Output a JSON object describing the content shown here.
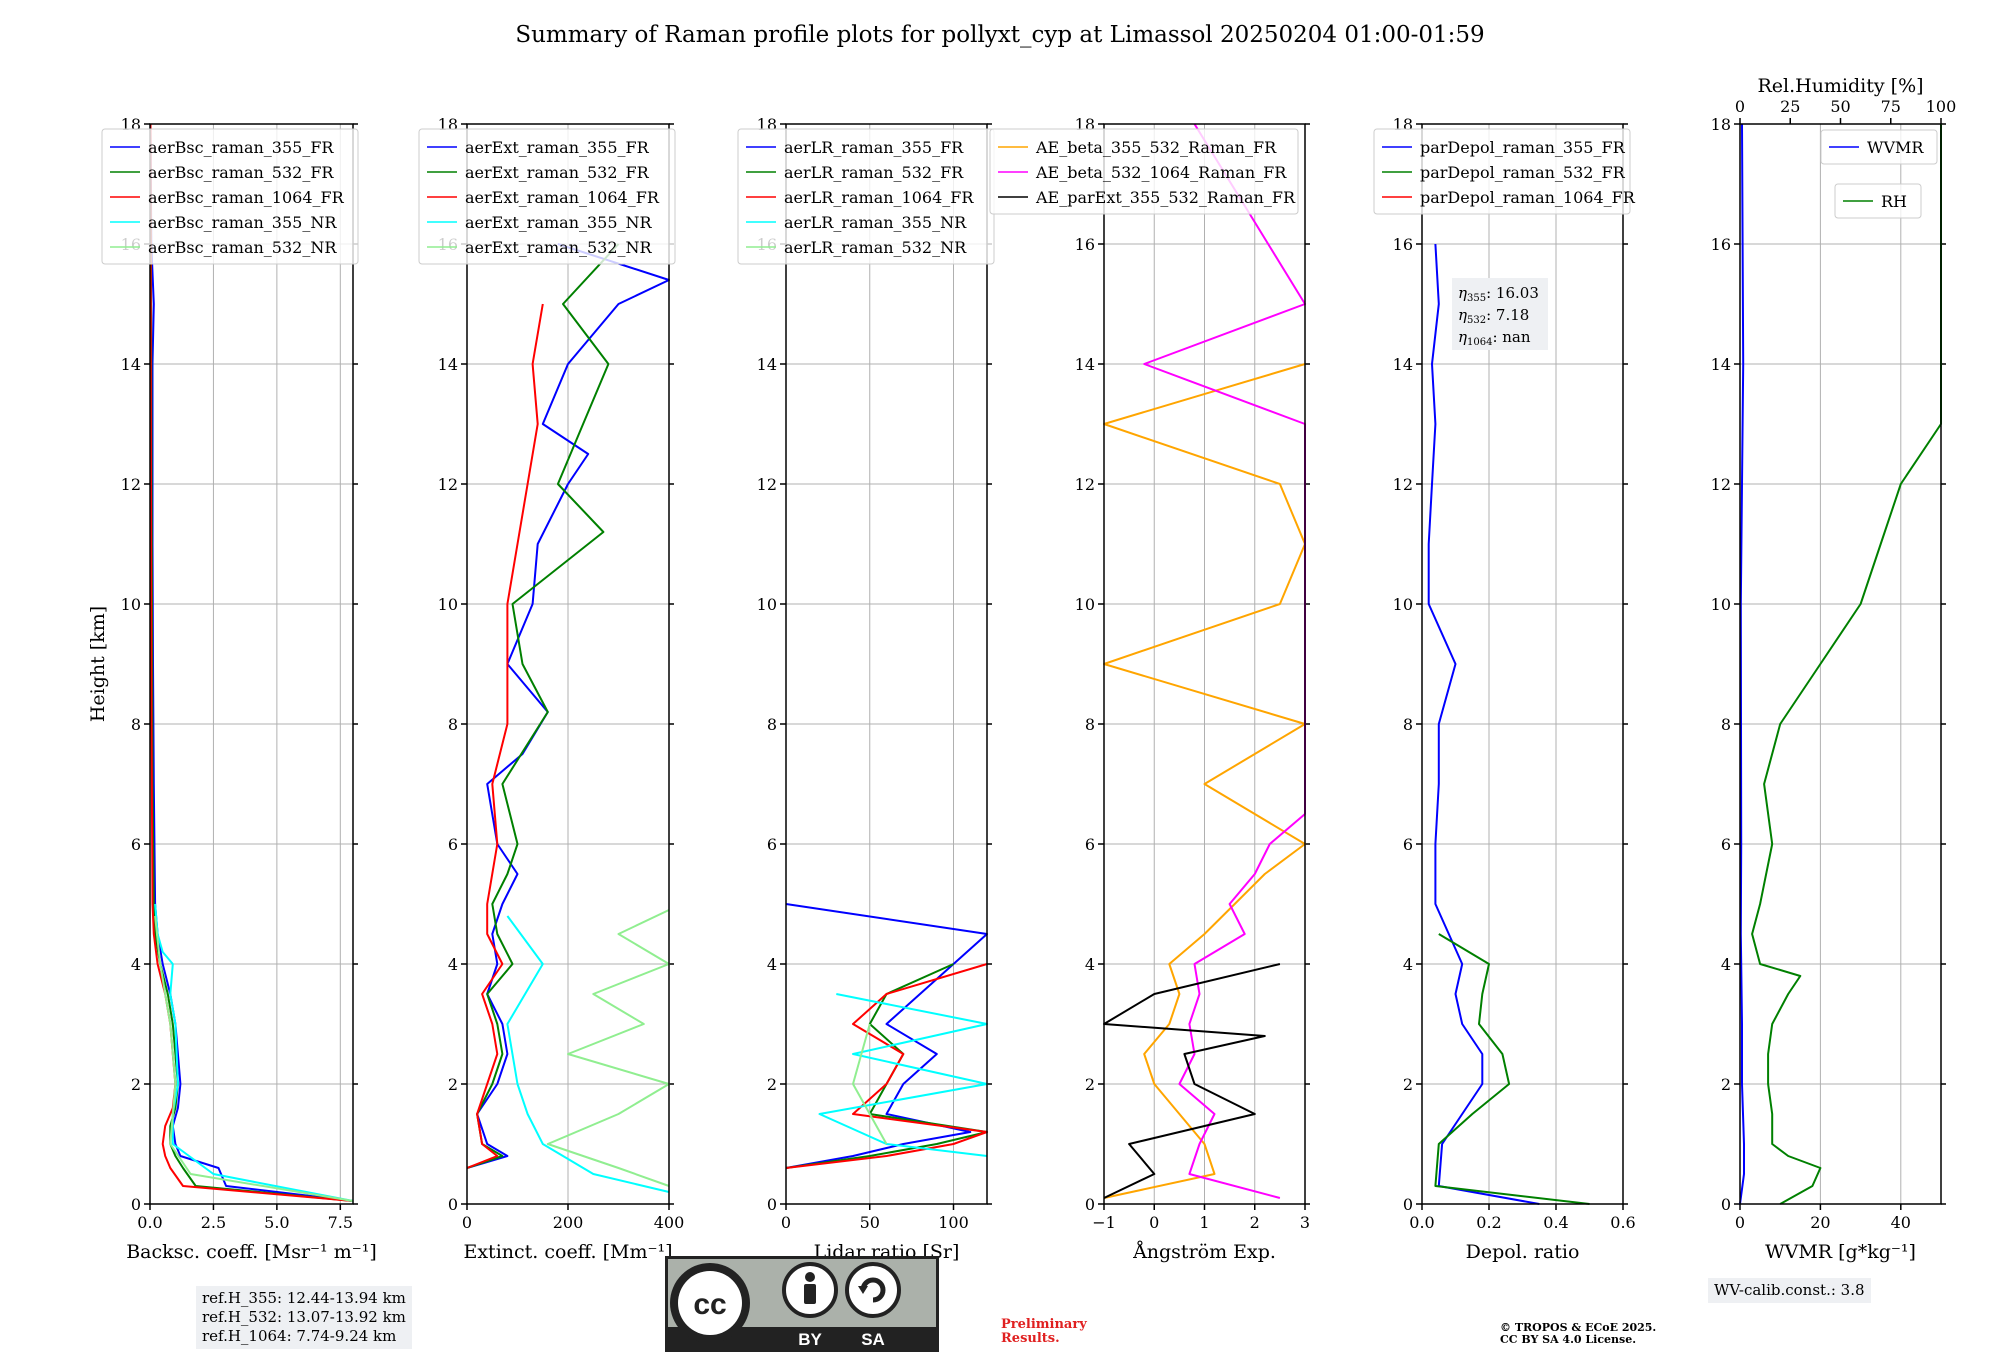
{
  "figure": {
    "title": "Summary of Raman profile plots for pollyxt_cyp at Limassol 20250204 01:00-01:59",
    "ylabel": "Height [km]",
    "ref_heights": [
      "ref.H_355: 12.44-13.94 km",
      "ref.H_532: 13.07-13.92 km",
      "ref.H_1064: 7.74-9.24 km"
    ],
    "wv_calib": "WV-calib.const.: 3.8",
    "preliminary": [
      "Preliminary",
      "Results."
    ],
    "copyright": [
      "© TROPOS & ECoE 2025.",
      "CC BY SA 4.0 License."
    ],
    "cc_badge": {
      "bottom_labels": [
        "BY",
        "SA"
      ],
      "glyph": "cc"
    },
    "colors": {
      "blue": "#0000ff",
      "green": "#008000",
      "red": "#ff0000",
      "cyan": "#00ffff",
      "lightgreen": "#90ee90",
      "orange": "#ffa500",
      "magenta": "#ff00ff",
      "black": "#000000"
    }
  },
  "chart_data": [
    {
      "type": "line",
      "xlabel": "Backsc. coeff. [Msr⁻¹ m⁻¹]",
      "ylabel": "Height [km]",
      "xlim": [
        0,
        8
      ],
      "ylim": [
        0,
        18
      ],
      "xticks": [
        "0.0",
        "2.5",
        "5.0",
        "7.5"
      ],
      "xtick_values": [
        0,
        2.5,
        5,
        7.5
      ],
      "yticks": [
        "0",
        "2",
        "4",
        "6",
        "8",
        "10",
        "12",
        "14",
        "16",
        "18"
      ],
      "grid": true,
      "legend": "upper-left",
      "series": [
        {
          "name": "aerBsc_raman_355_FR",
          "color": "#0000ff",
          "y": [
            0.05,
            0.3,
            0.6,
            0.8,
            1.0,
            1.3,
            1.6,
            2.0,
            2.5,
            3.0,
            3.5,
            4.0,
            4.5,
            5,
            7,
            9,
            11,
            13,
            14,
            15,
            16,
            18
          ],
          "x": [
            8,
            3.0,
            2.7,
            1.2,
            1.0,
            0.9,
            1.1,
            1.2,
            1.1,
            1.0,
            0.8,
            0.5,
            0.3,
            0.2,
            0.15,
            0.12,
            0.1,
            0.1,
            0.1,
            0.15,
            0.05,
            0.02
          ]
        },
        {
          "name": "aerBsc_raman_532_FR",
          "color": "#008000",
          "y": [
            0.05,
            0.3,
            0.6,
            0.8,
            1.0,
            1.3,
            1.6,
            2.0,
            2.5,
            3.0,
            3.5,
            4.0,
            4.5,
            5,
            7,
            10,
            14,
            18
          ],
          "x": [
            8,
            1.8,
            1.3,
            1.0,
            0.8,
            0.8,
            1.0,
            1.1,
            1.0,
            0.9,
            0.7,
            0.4,
            0.2,
            0.15,
            0.1,
            0.08,
            0.05,
            0.02
          ]
        },
        {
          "name": "aerBsc_raman_1064_FR",
          "color": "#ff0000",
          "y": [
            0.05,
            0.3,
            0.6,
            0.8,
            1.0,
            1.3,
            1.6,
            2.0,
            2.5,
            3.0,
            3.5,
            4.0,
            4.5,
            5,
            8,
            12,
            18
          ],
          "x": [
            8,
            1.3,
            0.8,
            0.6,
            0.5,
            0.6,
            0.9,
            1.0,
            0.9,
            0.8,
            0.6,
            0.3,
            0.15,
            0.1,
            0.06,
            0.04,
            0.02
          ]
        },
        {
          "name": "aerBsc_raman_355_NR",
          "color": "#00ffff",
          "y": [
            0.05,
            0.5,
            1.0,
            1.5,
            2.0,
            3.0,
            3.5,
            4.0,
            4.2,
            4.5,
            5.0
          ],
          "x": [
            8,
            2.5,
            0.9,
            0.9,
            1.1,
            1.0,
            0.8,
            0.9,
            0.5,
            0.3,
            0.2
          ]
        },
        {
          "name": "aerBsc_raman_532_NR",
          "color": "#90ee90",
          "y": [
            0.05,
            0.5,
            1.0,
            2.0,
            3.0,
            4.0,
            4.8
          ],
          "x": [
            8,
            1.6,
            0.8,
            1.0,
            0.8,
            0.4,
            0.2
          ]
        }
      ]
    },
    {
      "type": "line",
      "xlabel": "Extinct. coeff. [Mm⁻¹]",
      "xlim": [
        0,
        400
      ],
      "ylim": [
        0,
        18
      ],
      "xticks": [
        "0",
        "200",
        "400"
      ],
      "xtick_values": [
        0,
        200,
        400
      ],
      "yticks": [
        "0",
        "2",
        "4",
        "6",
        "8",
        "10",
        "12",
        "14",
        "16",
        "18"
      ],
      "grid": true,
      "legend": "upper-left",
      "series": [
        {
          "name": "aerExt_raman_355_FR",
          "color": "#0000ff",
          "y": [
            0.6,
            0.8,
            1.0,
            1.5,
            2.0,
            2.5,
            3.0,
            3.5,
            4.0,
            4.5,
            5.0,
            5.5,
            6.0,
            7.0,
            7.5,
            8.2,
            9.0,
            10.0,
            11.0,
            12.0,
            12.5,
            13.0,
            14.0,
            15.0,
            15.4,
            16.0
          ],
          "x": [
            0,
            80,
            40,
            20,
            60,
            80,
            70,
            40,
            60,
            50,
            70,
            100,
            60,
            40,
            110,
            160,
            80,
            130,
            140,
            200,
            240,
            150,
            200,
            300,
            400,
            180
          ]
        },
        {
          "name": "aerExt_raman_532_FR",
          "color": "#008000",
          "y": [
            0.6,
            0.8,
            1.0,
            1.5,
            2.0,
            2.5,
            3.0,
            3.5,
            4.0,
            4.5,
            5.0,
            5.5,
            6.0,
            7.0,
            8.2,
            9.0,
            10.0,
            11.2,
            12.0,
            13.0,
            14.0,
            15.0,
            16.0
          ],
          "x": [
            0,
            70,
            30,
            20,
            50,
            70,
            60,
            40,
            90,
            60,
            50,
            80,
            100,
            70,
            160,
            110,
            90,
            270,
            180,
            230,
            280,
            190,
            300
          ]
        },
        {
          "name": "aerExt_raman_1064_FR",
          "color": "#ff0000",
          "y": [
            0.6,
            0.8,
            1.0,
            1.5,
            2.0,
            2.5,
            3.0,
            3.5,
            4.0,
            4.5,
            5.0,
            6.0,
            7.0,
            8.0,
            9.0,
            10.0,
            11.0,
            12.0,
            13.0,
            14.0,
            15.0
          ],
          "x": [
            0,
            60,
            30,
            20,
            40,
            60,
            50,
            30,
            70,
            40,
            40,
            60,
            50,
            80,
            80,
            80,
            100,
            120,
            140,
            130,
            150
          ]
        },
        {
          "name": "aerExt_raman_355_NR",
          "color": "#00ffff",
          "y": [
            0.2,
            0.5,
            1.0,
            1.5,
            2.0,
            3.0,
            4.0,
            4.8
          ],
          "x": [
            400,
            250,
            150,
            120,
            100,
            80,
            150,
            80
          ]
        },
        {
          "name": "aerExt_raman_532_NR",
          "color": "#90ee90",
          "y": [
            0.3,
            0.6,
            1.0,
            1.5,
            2.0,
            2.5,
            3.0,
            3.5,
            4.0,
            4.5,
            4.9
          ],
          "x": [
            400,
            300,
            160,
            300,
            400,
            200,
            350,
            250,
            400,
            300,
            400
          ]
        }
      ]
    },
    {
      "type": "line",
      "xlabel": "Lidar ratio [Sr]",
      "xlim": [
        0,
        120
      ],
      "ylim": [
        0,
        18
      ],
      "xticks": [
        "0",
        "50",
        "100"
      ],
      "xtick_values": [
        0,
        50,
        100
      ],
      "yticks": [
        "0",
        "2",
        "4",
        "6",
        "8",
        "10",
        "12",
        "14",
        "16",
        "18"
      ],
      "grid": true,
      "legend": "upper-left",
      "series": [
        {
          "name": "aerLR_raman_355_FR",
          "color": "#0000ff",
          "y": [
            0.6,
            0.8,
            1.0,
            1.2,
            1.5,
            2.0,
            2.5,
            3.0,
            3.5,
            4.0,
            4.5,
            5.0
          ],
          "x": [
            0,
            40,
            70,
            110,
            60,
            70,
            90,
            60,
            80,
            100,
            120,
            0
          ]
        },
        {
          "name": "aerLR_raman_532_FR",
          "color": "#008000",
          "y": [
            0.6,
            0.8,
            1.0,
            1.2,
            1.5,
            2.0,
            2.5,
            3.0,
            3.5,
            4.0
          ],
          "x": [
            0,
            50,
            90,
            120,
            50,
            60,
            70,
            50,
            60,
            100
          ]
        },
        {
          "name": "aerLR_raman_1064_FR",
          "color": "#ff0000",
          "y": [
            0.6,
            0.8,
            1.0,
            1.2,
            1.5,
            2.0,
            2.5,
            3.0,
            3.5,
            4.0
          ],
          "x": [
            0,
            60,
            100,
            120,
            40,
            60,
            70,
            40,
            60,
            120
          ]
        },
        {
          "name": "aerLR_raman_355_NR",
          "color": "#00ffff",
          "y": [
            0.8,
            1.0,
            1.5,
            2.0,
            2.5,
            3.0,
            3.5
          ],
          "x": [
            120,
            60,
            20,
            120,
            40,
            120,
            30
          ]
        },
        {
          "name": "aerLR_raman_532_NR",
          "color": "#90ee90",
          "y": [
            1.0,
            2.0,
            3.0
          ],
          "x": [
            60,
            40,
            50
          ]
        }
      ]
    },
    {
      "type": "line",
      "xlabel": "Ångström Exp.",
      "xlim": [
        -1,
        3
      ],
      "ylim": [
        0,
        18
      ],
      "xticks": [
        "−1",
        "0",
        "1",
        "2",
        "3"
      ],
      "xtick_values": [
        -1,
        0,
        1,
        2,
        3
      ],
      "yticks": [
        "0",
        "2",
        "4",
        "6",
        "8",
        "10",
        "12",
        "14",
        "16",
        "18"
      ],
      "grid": true,
      "legend": "upper-center",
      "series": [
        {
          "name": "AE_beta_355_532_Raman_FR",
          "color": "#ffa500",
          "y": [
            0.1,
            0.5,
            1.0,
            1.5,
            2.0,
            2.5,
            3.0,
            3.5,
            4.0,
            4.5,
            5.0,
            5.5,
            6.0,
            7.0,
            8.0,
            9.0,
            10.0,
            11.0,
            12.0,
            13.0,
            14.0
          ],
          "x": [
            -1,
            1.2,
            1.0,
            0.5,
            0.0,
            -0.2,
            0.3,
            0.5,
            0.3,
            1.0,
            1.6,
            2.2,
            3.0,
            1.0,
            3.0,
            -1,
            2.5,
            3,
            2.5,
            -1,
            3
          ]
        },
        {
          "name": "AE_beta_532_1064_Raman_FR",
          "color": "#ff00ff",
          "y": [
            0.1,
            0.5,
            1.0,
            1.5,
            2.0,
            2.5,
            3.0,
            3.5,
            4.0,
            4.5,
            5.0,
            5.5,
            6.0,
            6.5,
            13.0,
            14.0,
            15.0,
            18.0
          ],
          "x": [
            2.5,
            0.7,
            0.9,
            1.2,
            0.5,
            0.8,
            0.7,
            0.9,
            0.8,
            1.8,
            1.5,
            2.0,
            2.3,
            3.0,
            3.0,
            -0.2,
            3.0,
            0.8
          ]
        },
        {
          "name": "AE_parExt_355_532_Raman_FR",
          "color": "#000000",
          "y": [
            0.1,
            0.5,
            1.0,
            1.5,
            2.0,
            2.5,
            2.8,
            3.0,
            3.5,
            4.0
          ],
          "x": [
            -1,
            0.0,
            -0.5,
            2.0,
            0.8,
            0.6,
            2.2,
            -1.0,
            0.0,
            2.5
          ]
        }
      ]
    },
    {
      "type": "line",
      "xlabel": "Depol. ratio",
      "xlim": [
        0,
        0.6
      ],
      "ylim": [
        0,
        18
      ],
      "xticks": [
        "0.0",
        "0.2",
        "0.4",
        "0.6"
      ],
      "xtick_values": [
        0,
        0.2,
        0.4,
        0.6
      ],
      "yticks": [
        "0",
        "2",
        "4",
        "6",
        "8",
        "10",
        "12",
        "14",
        "16",
        "18"
      ],
      "grid": true,
      "legend": "upper-left",
      "annotation": [
        "16.03",
        "7.18",
        "nan"
      ],
      "series": [
        {
          "name": "parDepol_raman_355_FR",
          "color": "#0000ff",
          "y": [
            0.0,
            0.3,
            1.0,
            1.5,
            2.0,
            2.5,
            3.0,
            3.5,
            4.0,
            4.5,
            5.0,
            6.0,
            7.0,
            8.0,
            9.0,
            10.0,
            11.0,
            12.0,
            13.0,
            14.0,
            15.0,
            16.0
          ],
          "x": [
            0.35,
            0.05,
            0.06,
            0.12,
            0.18,
            0.18,
            0.12,
            0.1,
            0.12,
            0.08,
            0.04,
            0.04,
            0.05,
            0.05,
            0.1,
            0.02,
            0.02,
            0.03,
            0.04,
            0.03,
            0.05,
            0.04
          ]
        },
        {
          "name": "parDepol_raman_532_FR",
          "color": "#008000",
          "y": [
            0.0,
            0.3,
            1.0,
            1.5,
            2.0,
            2.5,
            3.0,
            3.5,
            4.0,
            4.5
          ],
          "x": [
            0.5,
            0.04,
            0.05,
            0.15,
            0.26,
            0.24,
            0.17,
            0.18,
            0.2,
            0.05
          ]
        },
        {
          "name": "parDepol_raman_1064_FR",
          "color": "#ff0000",
          "y": [],
          "x": []
        }
      ]
    },
    {
      "type": "line",
      "xlabel": "WVMR [g*kg⁻¹]",
      "x2label": "Rel.Humidity [%]",
      "xlim": [
        0,
        50
      ],
      "x2lim": [
        0,
        100
      ],
      "ylim": [
        0,
        18
      ],
      "xticks": [
        "0",
        "20",
        "40"
      ],
      "xtick_values": [
        0,
        20,
        40
      ],
      "x2ticks": [
        "0",
        "25",
        "50",
        "75",
        "100"
      ],
      "x2tick_values": [
        0,
        25,
        50,
        75,
        100
      ],
      "yticks": [
        "0",
        "2",
        "4",
        "6",
        "8",
        "10",
        "12",
        "14",
        "16",
        "18"
      ],
      "grid": true,
      "legend": "upper-right",
      "series": [
        {
          "name": "WVMR",
          "color": "#0000ff",
          "y": [
            0.0,
            0.5,
            1.0,
            2.0,
            3.0,
            4.0,
            4.5,
            6.0,
            10.0,
            14.0,
            18.0
          ],
          "x": [
            0,
            1.0,
            1.0,
            0.5,
            0.5,
            0.3,
            0.2,
            0.3,
            0.2,
            0.8,
            0.5
          ]
        },
        {
          "name": "RH",
          "color": "#008000",
          "y": [
            0.0,
            0.3,
            0.6,
            0.8,
            1.0,
            1.5,
            2.0,
            2.5,
            3.0,
            3.5,
            3.8,
            4.0,
            4.5,
            5.0,
            6.0,
            7.0,
            8.0,
            9.0,
            10.0,
            11.0,
            12.0,
            13.0,
            14.0,
            15.0,
            16.0,
            17.0,
            18.0
          ],
          "x": [
            10,
            18,
            20,
            12,
            8,
            8,
            7,
            7,
            8,
            12,
            15,
            5,
            3,
            5,
            8,
            6,
            10,
            20,
            30,
            35,
            40,
            70,
            75,
            80,
            85,
            90,
            95
          ]
        }
      ]
    }
  ]
}
